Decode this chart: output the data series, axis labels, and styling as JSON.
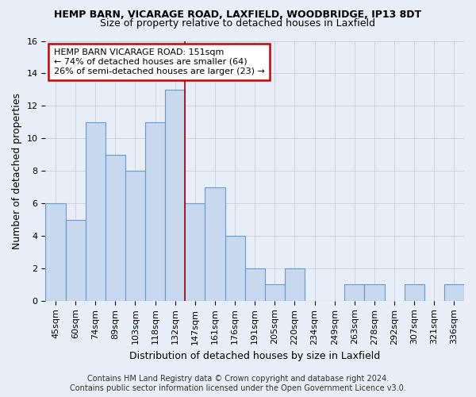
{
  "title": "HEMP BARN, VICARAGE ROAD, LAXFIELD, WOODBRIDGE, IP13 8DT",
  "subtitle": "Size of property relative to detached houses in Laxfield",
  "xlabel": "Distribution of detached houses by size in Laxfield",
  "ylabel": "Number of detached properties",
  "categories": [
    "45sqm",
    "60sqm",
    "74sqm",
    "89sqm",
    "103sqm",
    "118sqm",
    "132sqm",
    "147sqm",
    "161sqm",
    "176sqm",
    "191sqm",
    "205sqm",
    "220sqm",
    "234sqm",
    "249sqm",
    "263sqm",
    "278sqm",
    "292sqm",
    "307sqm",
    "321sqm",
    "336sqm"
  ],
  "values": [
    6,
    5,
    11,
    9,
    8,
    11,
    13,
    6,
    7,
    4,
    2,
    1,
    2,
    0,
    0,
    1,
    1,
    0,
    1,
    0,
    1
  ],
  "bar_color": "#c8d8ee",
  "bar_edge_color": "#6699cc",
  "highlight_index": 6,
  "highlight_line_color": "#aa0000",
  "ylim": [
    0,
    16
  ],
  "yticks": [
    0,
    2,
    4,
    6,
    8,
    10,
    12,
    14,
    16
  ],
  "annotation_box_text": "HEMP BARN VICARAGE ROAD: 151sqm\n← 74% of detached houses are smaller (64)\n26% of semi-detached houses are larger (23) →",
  "annotation_box_color": "white",
  "annotation_box_edge_color": "#cc0000",
  "footer_line1": "Contains HM Land Registry data © Crown copyright and database right 2024.",
  "footer_line2": "Contains public sector information licensed under the Open Government Licence v3.0.",
  "background_color": "#e8eef8",
  "grid_color": "#c0c8d8",
  "title_fontsize": 9,
  "subtitle_fontsize": 9,
  "tick_fontsize": 8,
  "ylabel_fontsize": 9,
  "xlabel_fontsize": 9,
  "annot_fontsize": 8,
  "footer_fontsize": 7
}
